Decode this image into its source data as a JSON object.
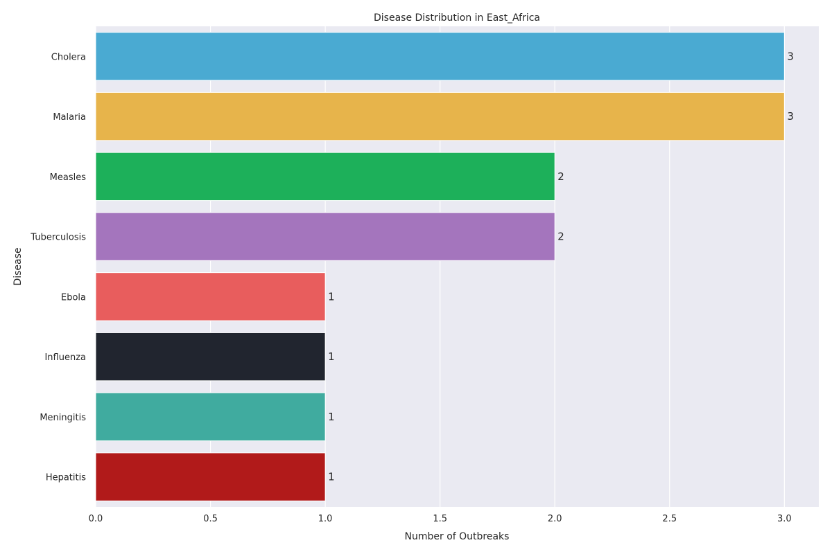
{
  "chart_data": {
    "type": "bar",
    "orientation": "horizontal",
    "title": "Disease Distribution in East_Africa",
    "xlabel": "Number of Outbreaks",
    "ylabel": "Disease",
    "xlim": [
      0,
      3.15
    ],
    "xticks": [
      0.0,
      0.5,
      1.0,
      1.5,
      2.0,
      2.5,
      3.0
    ],
    "xtick_labels": [
      "0.0",
      "0.5",
      "1.0",
      "1.5",
      "2.0",
      "2.5",
      "3.0"
    ],
    "grid": true,
    "categories": [
      "Cholera",
      "Malaria",
      "Measles",
      "Tuberculosis",
      "Ebola",
      "Influenza",
      "Meningitis",
      "Hepatitis"
    ],
    "values": [
      3,
      3,
      2,
      2,
      1,
      1,
      1,
      1
    ],
    "data_labels": [
      "3",
      "3",
      "2",
      "2",
      "1",
      "1",
      "1",
      "1"
    ],
    "colors": [
      "#4aaad2",
      "#e7b44b",
      "#1db05a",
      "#a475bd",
      "#e85d5d",
      "#21252f",
      "#40ab9f",
      "#b11a1a"
    ]
  }
}
